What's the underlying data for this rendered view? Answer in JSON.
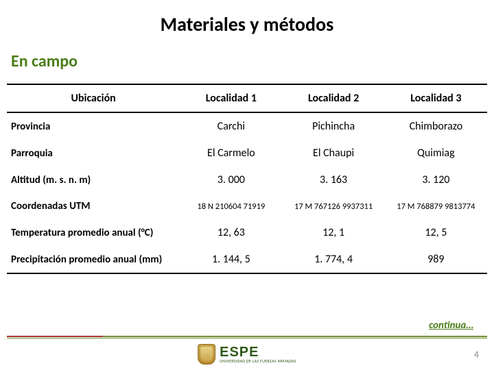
{
  "title": "Materiales y métodos",
  "subtitle": "En campo",
  "table": {
    "columns": [
      "Ubicación",
      "Localidad 1",
      "Localidad 2",
      "Localidad 3"
    ],
    "rows": [
      {
        "label": "Provincia",
        "v1": "Carchi",
        "v2": "Pichincha",
        "v3": "Chimborazo"
      },
      {
        "label": "Parroquia",
        "v1": "El Carmelo",
        "v2": "El Chaupi",
        "v3": "Quimiag"
      },
      {
        "label": "Altitud (m. s. n. m)",
        "v1": "3. 000",
        "v2": "3. 163",
        "v3": "3. 120"
      },
      {
        "label": "Coordenadas UTM",
        "v1": "18 N 210604 71919",
        "v2": "17 M 767126 9937311",
        "v3": "17 M 768879 9813774"
      },
      {
        "label": "Temperatura promedio anual (°C)",
        "v1": "12, 63",
        "v2": "12, 1",
        "v3": "12, 5"
      },
      {
        "label": "Precipitación promedio anual (mm)",
        "v1": "1. 144, 5",
        "v2": "1. 774, 4",
        "v3": "989"
      }
    ]
  },
  "continua": "continua…",
  "logo": {
    "text": "ESPE",
    "sub": "UNIVERSIDAD DE LAS FUERZAS ARMADAS"
  },
  "page_number": "4",
  "colors": {
    "accent_green": "#4b7d17",
    "text": "#000000",
    "page_num": "#8a8a8a"
  }
}
